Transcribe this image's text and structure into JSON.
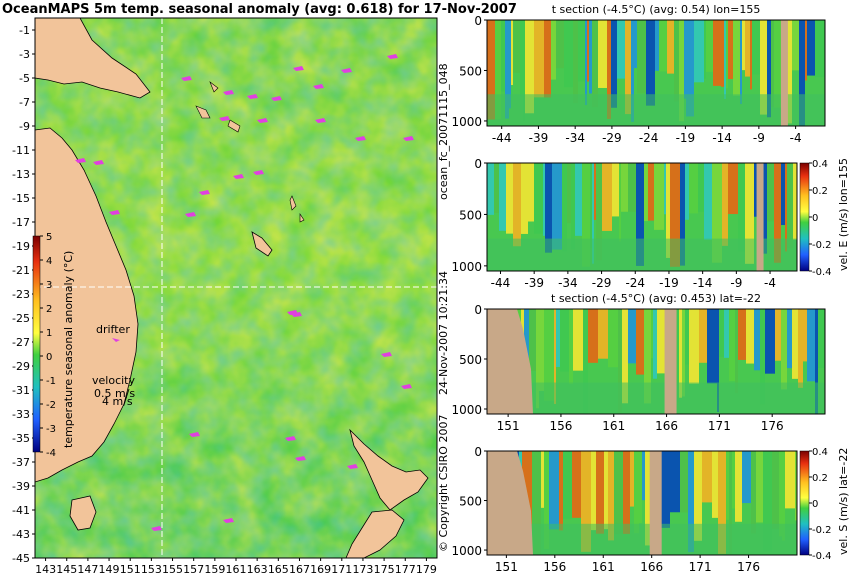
{
  "map": {
    "title": "OceanMAPS 5m temp. seasonal anomaly (avg: 0.618) for 17-Nov-2007",
    "x_ticks": [
      "143",
      "145",
      "147",
      "149",
      "151",
      "153",
      "155",
      "157",
      "159",
      "161",
      "163",
      "165",
      "167",
      "169",
      "171",
      "173",
      "175",
      "177",
      "179"
    ],
    "y_ticks": [
      "-1",
      "-3",
      "-5",
      "-7",
      "-9",
      "-11",
      "-13",
      "-15",
      "-17",
      "-19",
      "-21",
      "-23",
      "-25",
      "-27",
      "-29",
      "-31",
      "-33",
      "-35",
      "-37",
      "-39",
      "-41",
      "-43",
      "-45"
    ],
    "xlim": [
      142,
      180
    ],
    "ylim": [
      -45,
      0
    ],
    "crosshair": {
      "lon": 155,
      "lat": -22
    },
    "colorbar": {
      "label": "temperature seasonal anomaly (°C)",
      "ticks": [
        "5",
        "4",
        "3",
        "2",
        "1",
        "0",
        "-1",
        "-2",
        "-3",
        "-4"
      ],
      "range": [
        -4,
        5
      ]
    },
    "legend": {
      "drifter_label": "drifter",
      "velocity_label": "velocity",
      "velocity_value": "0.5 m/s",
      "velocity_value2": "4 m/s"
    },
    "drifter_color": "#e040e0"
  },
  "side_texts": {
    "forecast_id": "ocean_fc_20071115_048",
    "timestamp": "24-Nov-2007 10:21:34",
    "copyright": "© Copyright CSIRO 2007"
  },
  "panels": [
    {
      "title": "t section (-4.5°C) (avg: 0.54) lon=155",
      "x_ticks": [
        "-44",
        "-39",
        "-34",
        "-29",
        "-24",
        "-19",
        "-14",
        "-9",
        "-4"
      ],
      "y_ticks": [
        "0",
        "500",
        "1000"
      ],
      "colorbar_label": "",
      "colorbar_ticks": []
    },
    {
      "title": "",
      "x_ticks": [
        "-44",
        "-39",
        "-34",
        "-29",
        "-24",
        "-19",
        "-14",
        "-9",
        "-4"
      ],
      "y_ticks": [
        "0",
        "500",
        "1000"
      ],
      "colorbar_label": "vel. E (m/s) lon=155",
      "colorbar_ticks": [
        "0.4",
        "0.2",
        "0",
        "-0.2",
        "-0.4"
      ]
    },
    {
      "title": "t section (-4.5°C) (avg: 0.453) lat=-22",
      "x_ticks": [
        "151",
        "156",
        "161",
        "166",
        "171",
        "176"
      ],
      "y_ticks": [
        "0",
        "500",
        "1000"
      ],
      "colorbar_label": "",
      "colorbar_ticks": []
    },
    {
      "title": "",
      "x_ticks": [
        "151",
        "156",
        "161",
        "166",
        "171",
        "176"
      ],
      "y_ticks": [
        "0",
        "500",
        "1000"
      ],
      "colorbar_label": "vel. S (m/s) lat=-22",
      "colorbar_ticks": [
        "0.4",
        "0.2",
        "0",
        "-0.2",
        "-0.4"
      ]
    }
  ],
  "chart_data": [
    {
      "type": "heatmap",
      "title": "OceanMAPS 5m temp. seasonal anomaly (avg: 0.618) for 17-Nov-2007",
      "x_ticks": [
        "143",
        "145",
        "147",
        "149",
        "151",
        "153",
        "155",
        "157",
        "159",
        "161",
        "163",
        "165",
        "167",
        "169",
        "171",
        "173",
        "175",
        "177",
        "179"
      ],
      "y_ticks": [
        "-1",
        "-3",
        "-5",
        "-7",
        "-9",
        "-11",
        "-13",
        "-15",
        "-17",
        "-19",
        "-21",
        "-23",
        "-25",
        "-27",
        "-29",
        "-31",
        "-33",
        "-35",
        "-37",
        "-39",
        "-41",
        "-43",
        "-45"
      ],
      "xlim": [
        142,
        180
      ],
      "ylim": [
        -45,
        0
      ],
      "value_range": [
        -4,
        5
      ],
      "colorbar_label": "temperature seasonal anomaly (°C)"
    },
    {
      "type": "heatmap",
      "title": "t section (-4.5°C) (avg: 0.54) lon=155",
      "xlim": [
        -46,
        0
      ],
      "ylim": [
        1050,
        0
      ],
      "x_ticks": [
        "-44",
        "-39",
        "-34",
        "-29",
        "-24",
        "-19",
        "-14",
        "-9",
        "-4"
      ],
      "y_ticks": [
        "0",
        "500",
        "1000"
      ]
    },
    {
      "type": "heatmap",
      "title": "",
      "xlim": [
        -46,
        0
      ],
      "ylim": [
        1050,
        0
      ],
      "x_ticks": [
        "-44",
        "-39",
        "-34",
        "-29",
        "-24",
        "-19",
        "-14",
        "-9",
        "-4"
      ],
      "y_ticks": [
        "0",
        "500",
        "1000"
      ],
      "value_range": [
        -0.4,
        0.4
      ],
      "colorbar_label": "vel. E (m/s) lon=155"
    },
    {
      "type": "heatmap",
      "title": "t section (-4.5°C) (avg: 0.453) lat=-22",
      "xlim": [
        149,
        181
      ],
      "ylim": [
        1050,
        0
      ],
      "x_ticks": [
        "151",
        "156",
        "161",
        "166",
        "171",
        "176"
      ],
      "y_ticks": [
        "0",
        "500",
        "1000"
      ]
    },
    {
      "type": "heatmap",
      "title": "",
      "xlim": [
        149,
        181
      ],
      "ylim": [
        1050,
        0
      ],
      "x_ticks": [
        "151",
        "156",
        "161",
        "166",
        "171",
        "176"
      ],
      "y_ticks": [
        "0",
        "500",
        "1000"
      ],
      "value_range": [
        -0.4,
        0.4
      ],
      "colorbar_label": "vel. S (m/s) lat=-22"
    }
  ]
}
